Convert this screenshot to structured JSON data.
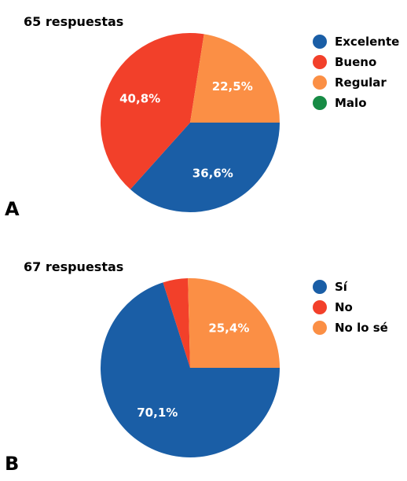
{
  "chart_data": [
    {
      "type": "pie",
      "panel_label": "A",
      "subtitle": "65 respuestas",
      "categories": [
        "Excelente",
        "Bueno",
        "Regular",
        "Malo"
      ],
      "values": [
        36.6,
        40.8,
        22.5,
        0
      ],
      "value_labels": [
        "36,6%",
        "40,8%",
        "22,5%",
        ""
      ],
      "colors": [
        "#1a5ea6",
        "#f2402a",
        "#fb8f45",
        "#178b45"
      ],
      "legend_position": "right"
    },
    {
      "type": "pie",
      "panel_label": "B",
      "subtitle": "67 respuestas",
      "categories": [
        "Sí",
        "No",
        "No lo sé"
      ],
      "values": [
        70.1,
        4.5,
        25.4
      ],
      "value_labels": [
        "70,1%",
        "",
        "25,4%"
      ],
      "colors": [
        "#1a5ea6",
        "#f2402a",
        "#fb8f45"
      ],
      "legend_position": "right"
    }
  ]
}
